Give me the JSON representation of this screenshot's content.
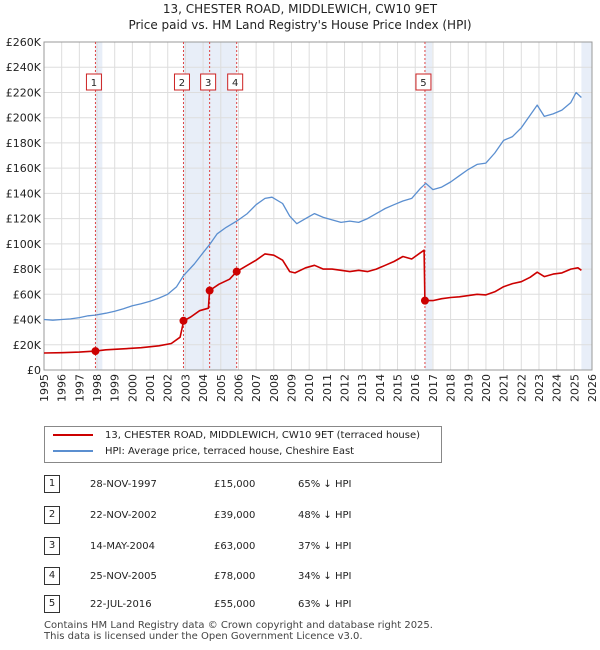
{
  "header": {
    "title_line1": "13, CHESTER ROAD, MIDDLEWICH, CW10 9ET",
    "title_line2": "Price paid vs. HM Land Registry's House Price Index (HPI)"
  },
  "chart_data": {
    "type": "line",
    "title": "13, CHESTER ROAD, MIDDLEWICH, CW10 9ET — Price paid vs. HM Land Registry's House Price Index (HPI)",
    "xlabel": "",
    "ylabel": "",
    "xlim": [
      1995,
      2026
    ],
    "ylim": [
      0,
      260000
    ],
    "x_ticks": [
      "1995",
      "1996",
      "1997",
      "1998",
      "1999",
      "2000",
      "2001",
      "2002",
      "2003",
      "2004",
      "2005",
      "2006",
      "2007",
      "2008",
      "2009",
      "2010",
      "2011",
      "2012",
      "2013",
      "2014",
      "2015",
      "2016",
      "2017",
      "2018",
      "2019",
      "2020",
      "2021",
      "2022",
      "2023",
      "2024",
      "2025",
      "2026"
    ],
    "y_ticks": [
      {
        "value": 0,
        "label": "£0"
      },
      {
        "value": 20000,
        "label": "£20K"
      },
      {
        "value": 40000,
        "label": "£40K"
      },
      {
        "value": 60000,
        "label": "£60K"
      },
      {
        "value": 80000,
        "label": "£80K"
      },
      {
        "value": 100000,
        "label": "£100K"
      },
      {
        "value": 120000,
        "label": "£120K"
      },
      {
        "value": 140000,
        "label": "£140K"
      },
      {
        "value": 160000,
        "label": "£160K"
      },
      {
        "value": 180000,
        "label": "£180K"
      },
      {
        "value": 200000,
        "label": "£200K"
      },
      {
        "value": 220000,
        "label": "£220K"
      },
      {
        "value": 240000,
        "label": "£240K"
      },
      {
        "value": 260000,
        "label": "£260K"
      }
    ],
    "grid": true,
    "legend_position": "below",
    "series": [
      {
        "name": "13, CHESTER ROAD, MIDDLEWICH, CW10 9ET (terraced house)",
        "color": "#cc0000",
        "points": [
          [
            1995.0,
            13500
          ],
          [
            1996.0,
            13700
          ],
          [
            1997.0,
            14200
          ],
          [
            1997.9,
            15000
          ],
          [
            1998.5,
            16000
          ],
          [
            1999.5,
            16800
          ],
          [
            2000.5,
            17700
          ],
          [
            2001.5,
            19200
          ],
          [
            2002.2,
            21000
          ],
          [
            2002.7,
            26000
          ],
          [
            2002.9,
            39000
          ],
          [
            2003.3,
            42000
          ],
          [
            2003.8,
            47000
          ],
          [
            2004.3,
            49000
          ],
          [
            2004.37,
            63000
          ],
          [
            2004.9,
            68000
          ],
          [
            2005.5,
            72000
          ],
          [
            2005.9,
            78000
          ],
          [
            2006.5,
            83000
          ],
          [
            2007.0,
            87000
          ],
          [
            2007.5,
            92000
          ],
          [
            2008.0,
            91000
          ],
          [
            2008.5,
            87000
          ],
          [
            2008.9,
            78000
          ],
          [
            2009.2,
            77000
          ],
          [
            2009.8,
            81000
          ],
          [
            2010.3,
            83000
          ],
          [
            2010.8,
            80000
          ],
          [
            2011.3,
            80000
          ],
          [
            2011.8,
            79000
          ],
          [
            2012.3,
            78000
          ],
          [
            2012.8,
            79000
          ],
          [
            2013.3,
            78000
          ],
          [
            2013.8,
            80000
          ],
          [
            2014.3,
            83000
          ],
          [
            2014.8,
            86000
          ],
          [
            2015.3,
            90000
          ],
          [
            2015.8,
            88000
          ],
          [
            2016.3,
            93000
          ],
          [
            2016.5,
            95000
          ],
          [
            2016.55,
            55000
          ],
          [
            2017.0,
            55000
          ],
          [
            2017.5,
            56500
          ],
          [
            2018.0,
            57500
          ],
          [
            2018.5,
            58000
          ],
          [
            2019.0,
            59000
          ],
          [
            2019.5,
            60000
          ],
          [
            2020.0,
            59500
          ],
          [
            2020.5,
            62000
          ],
          [
            2021.0,
            66000
          ],
          [
            2021.5,
            68500
          ],
          [
            2022.0,
            70000
          ],
          [
            2022.5,
            73500
          ],
          [
            2022.9,
            77500
          ],
          [
            2023.3,
            74000
          ],
          [
            2023.8,
            76000
          ],
          [
            2024.3,
            77000
          ],
          [
            2024.8,
            80000
          ],
          [
            2025.2,
            81000
          ],
          [
            2025.4,
            79000
          ]
        ]
      },
      {
        "name": "HPI: Average price, terraced house, Cheshire East",
        "color": "#5b8fd0",
        "points": [
          [
            1995.0,
            40000
          ],
          [
            1995.5,
            39500
          ],
          [
            1996.0,
            40000
          ],
          [
            1996.5,
            40500
          ],
          [
            1997.0,
            41500
          ],
          [
            1997.5,
            43000
          ],
          [
            1997.9,
            43500
          ],
          [
            1998.5,
            45000
          ],
          [
            1999.0,
            46500
          ],
          [
            1999.5,
            48500
          ],
          [
            2000.0,
            51000
          ],
          [
            2000.5,
            52500
          ],
          [
            2001.0,
            54500
          ],
          [
            2001.5,
            57000
          ],
          [
            2002.0,
            60000
          ],
          [
            2002.5,
            66000
          ],
          [
            2002.9,
            75000
          ],
          [
            2003.5,
            84000
          ],
          [
            2004.0,
            93000
          ],
          [
            2004.4,
            100000
          ],
          [
            2004.8,
            108000
          ],
          [
            2005.3,
            113000
          ],
          [
            2005.9,
            118000
          ],
          [
            2006.5,
            124000
          ],
          [
            2007.0,
            131000
          ],
          [
            2007.5,
            136000
          ],
          [
            2007.9,
            137000
          ],
          [
            2008.5,
            132000
          ],
          [
            2008.9,
            122000
          ],
          [
            2009.3,
            116000
          ],
          [
            2009.8,
            120000
          ],
          [
            2010.3,
            124000
          ],
          [
            2010.8,
            121000
          ],
          [
            2011.3,
            119000
          ],
          [
            2011.8,
            117000
          ],
          [
            2012.3,
            118000
          ],
          [
            2012.8,
            117000
          ],
          [
            2013.3,
            120000
          ],
          [
            2013.8,
            124000
          ],
          [
            2014.3,
            128000
          ],
          [
            2014.8,
            131000
          ],
          [
            2015.3,
            134000
          ],
          [
            2015.8,
            136000
          ],
          [
            2016.3,
            144000
          ],
          [
            2016.6,
            148000
          ],
          [
            2017.0,
            143000
          ],
          [
            2017.5,
            145000
          ],
          [
            2018.0,
            149000
          ],
          [
            2018.5,
            154000
          ],
          [
            2019.0,
            159000
          ],
          [
            2019.5,
            163000
          ],
          [
            2020.0,
            164000
          ],
          [
            2020.5,
            172000
          ],
          [
            2021.0,
            182000
          ],
          [
            2021.5,
            185000
          ],
          [
            2022.0,
            192000
          ],
          [
            2022.5,
            202000
          ],
          [
            2022.9,
            210000
          ],
          [
            2023.3,
            201000
          ],
          [
            2023.8,
            203000
          ],
          [
            2024.3,
            206000
          ],
          [
            2024.8,
            212000
          ],
          [
            2025.1,
            220000
          ],
          [
            2025.4,
            216000
          ]
        ]
      }
    ],
    "transactions": [
      {
        "num": "1",
        "x": 1997.91,
        "price": 15000
      },
      {
        "num": "2",
        "x": 2002.89,
        "price": 39000
      },
      {
        "num": "3",
        "x": 2004.37,
        "price": 63000
      },
      {
        "num": "4",
        "x": 2005.9,
        "price": 78000
      },
      {
        "num": "5",
        "x": 2016.55,
        "price": 55000
      }
    ],
    "shaded_ranges": [
      [
        1997.91,
        1998.3
      ],
      [
        2002.89,
        2005.9
      ],
      [
        2016.55,
        2016.95
      ],
      [
        2025.4,
        2026
      ]
    ]
  },
  "legend": {
    "items": [
      {
        "label": "13, CHESTER ROAD, MIDDLEWICH, CW10 9ET (terraced house)",
        "color": "#cc0000"
      },
      {
        "label": "HPI: Average price, terraced house, Cheshire East",
        "color": "#5b8fd0"
      }
    ]
  },
  "table": {
    "rows": [
      {
        "num": "1",
        "date": "28-NOV-1997",
        "price": "£15,000",
        "hpi": "65% ↓ HPI"
      },
      {
        "num": "2",
        "date": "22-NOV-2002",
        "price": "£39,000",
        "hpi": "48% ↓ HPI"
      },
      {
        "num": "3",
        "date": "14-MAY-2004",
        "price": "£63,000",
        "hpi": "37% ↓ HPI"
      },
      {
        "num": "4",
        "date": "25-NOV-2005",
        "price": "£78,000",
        "hpi": "34% ↓ HPI"
      },
      {
        "num": "5",
        "date": "22-JUL-2016",
        "price": "£55,000",
        "hpi": "63% ↓ HPI"
      }
    ]
  },
  "footer": {
    "line1": "Contains HM Land Registry data © Crown copyright and database right 2025.",
    "line2": "This data is licensed under the Open Government Licence v3.0."
  }
}
